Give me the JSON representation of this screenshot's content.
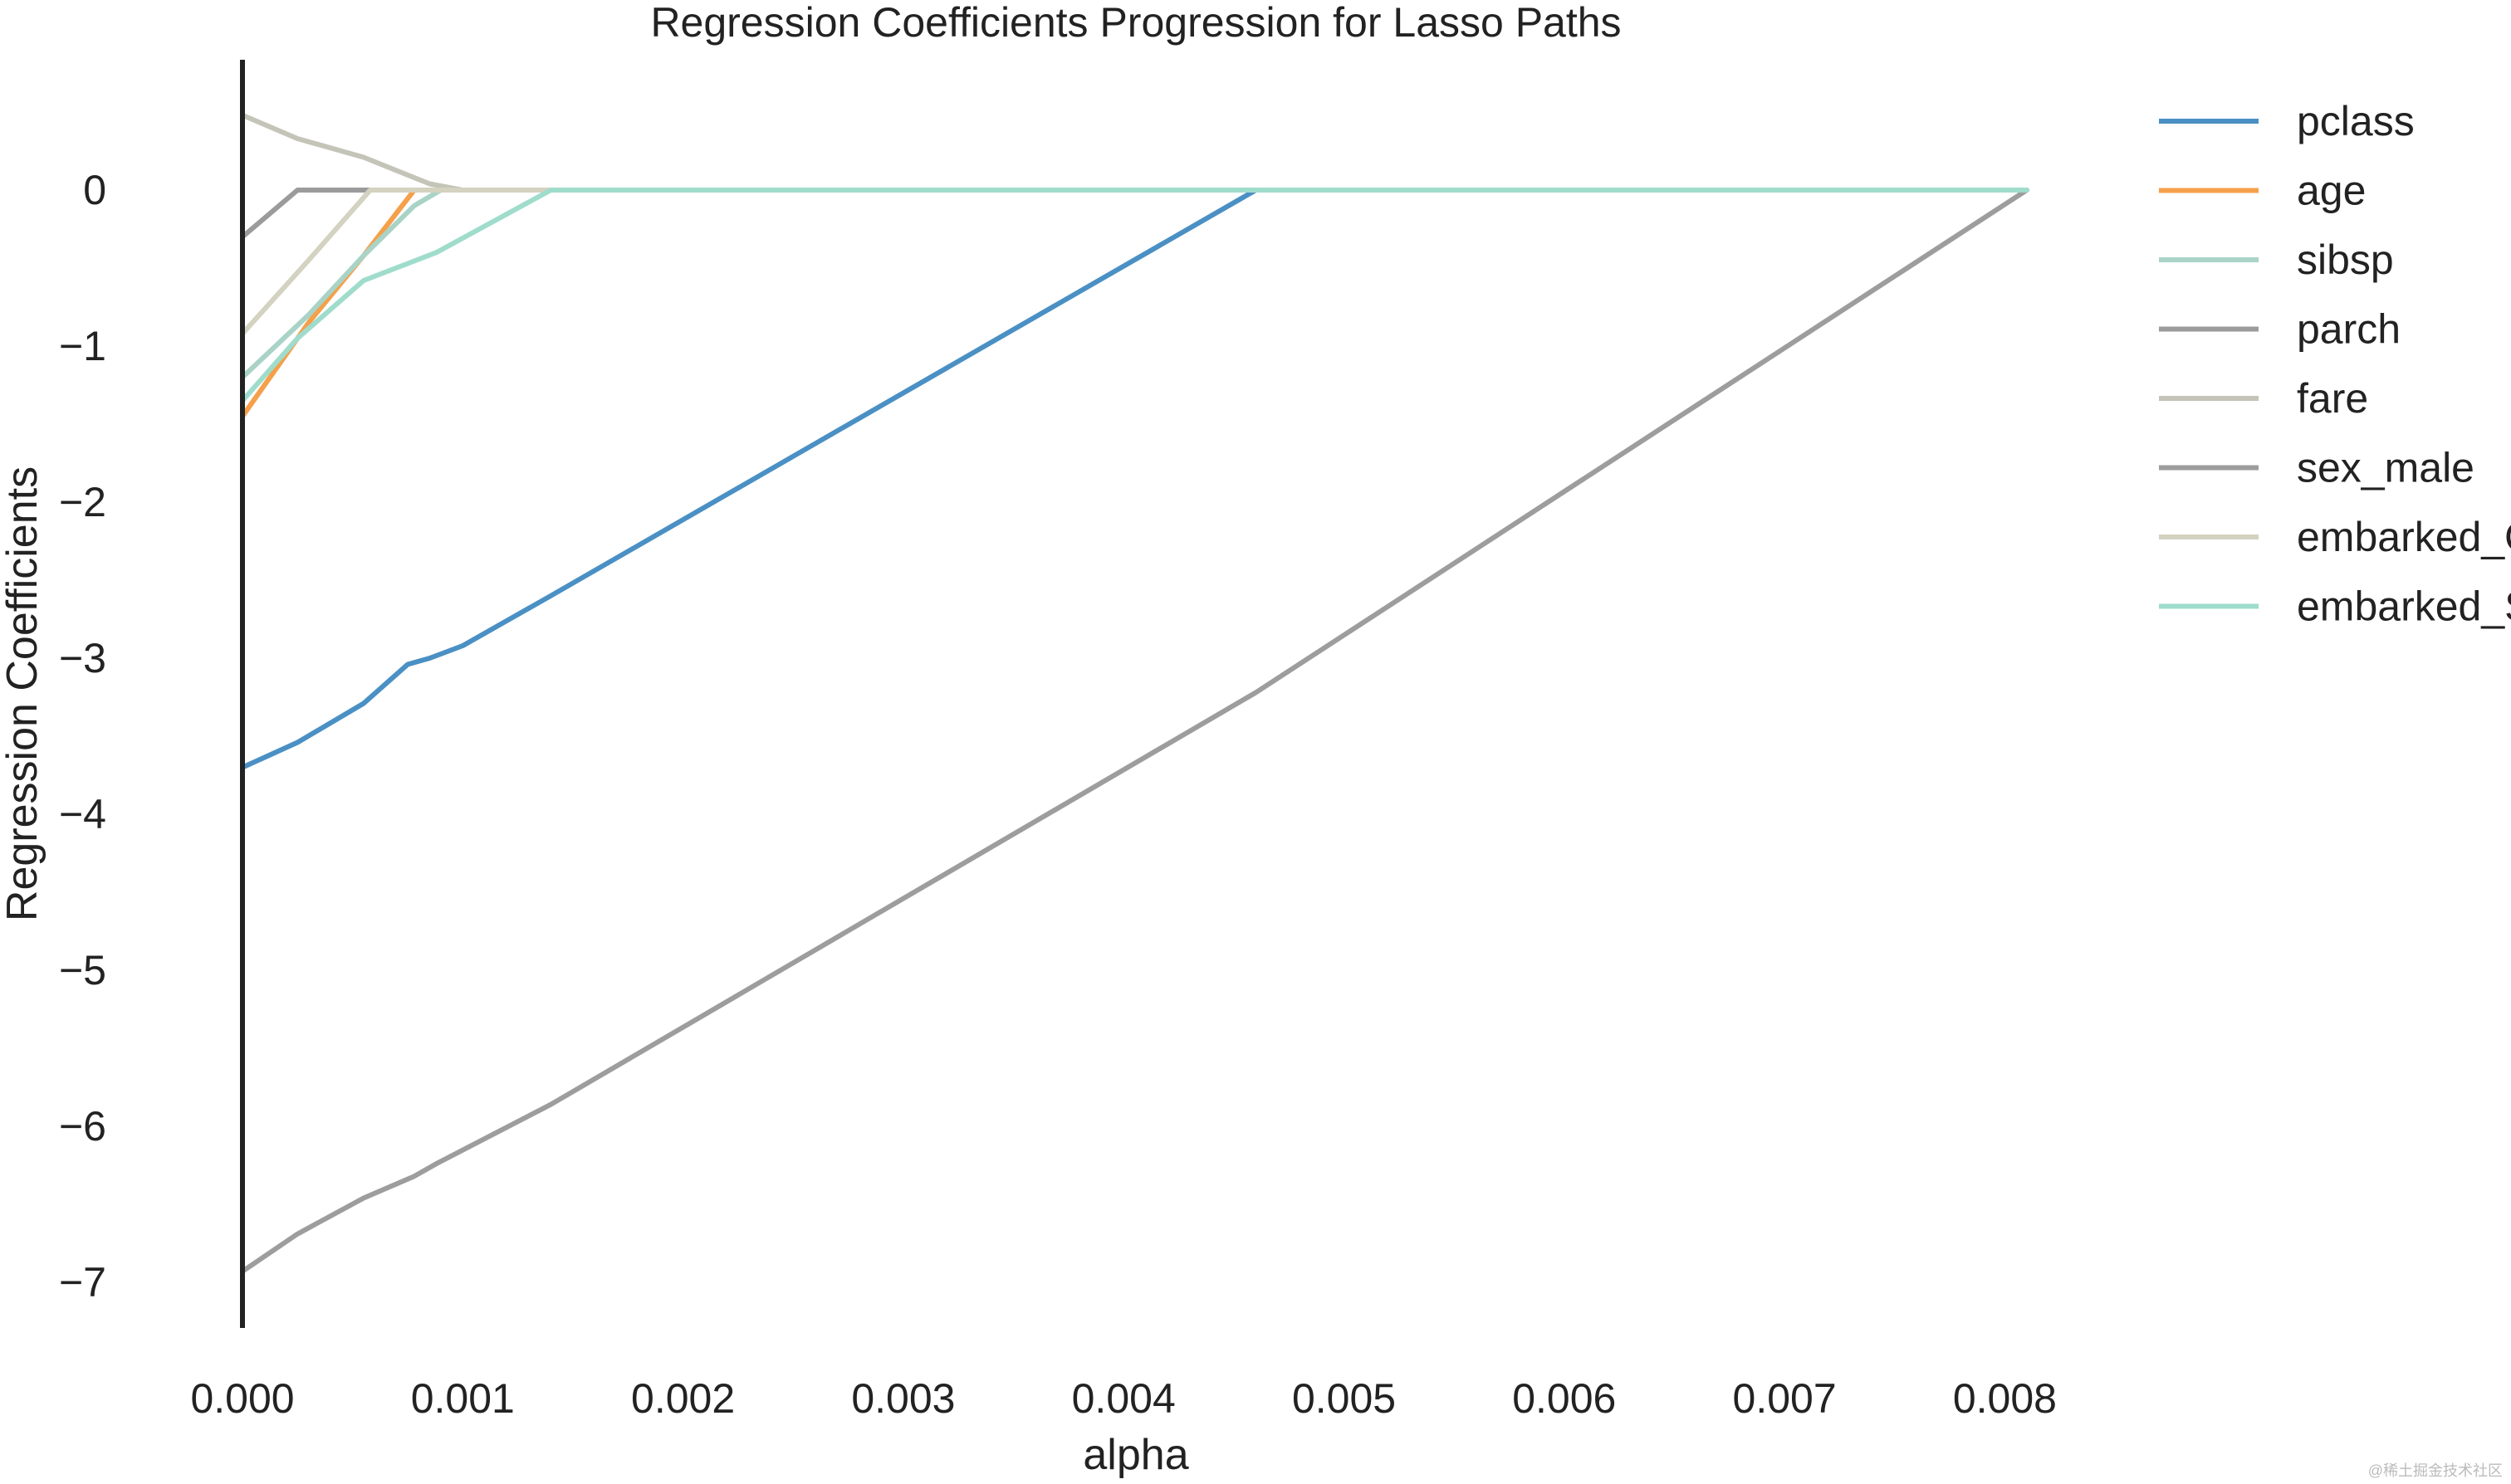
{
  "chart_data": {
    "type": "line",
    "title": "Regression Coefficients Progression for Lasso Paths",
    "xlabel": "alpha",
    "ylabel": "Regression Coefficients",
    "xlim": [
      0.0,
      0.0083
    ],
    "ylim": [
      -7.3,
      0.75
    ],
    "xticks": [
      0.0,
      0.001,
      0.002,
      0.003,
      0.004,
      0.005,
      0.006,
      0.007,
      0.008
    ],
    "xtick_labels": [
      "0.000",
      "0.001",
      "0.002",
      "0.003",
      "0.004",
      "0.005",
      "0.006",
      "0.007",
      "0.008"
    ],
    "yticks": [
      0,
      -1,
      -2,
      -3,
      -4,
      -5,
      -6,
      -7
    ],
    "ytick_labels": [
      "0",
      "−1",
      "−2",
      "−3",
      "−4",
      "−5",
      "−6",
      "−7"
    ],
    "grid": false,
    "legend_position": "outside-right",
    "series": [
      {
        "name": "pclass",
        "color": "#4a90c4",
        "points": [
          [
            0.0,
            -3.7
          ],
          [
            0.00025,
            -3.54
          ],
          [
            0.00055,
            -3.29
          ],
          [
            0.00075,
            -3.04
          ],
          [
            0.00085,
            -3.0
          ],
          [
            0.001,
            -2.92
          ],
          [
            0.0014,
            -2.6
          ],
          [
            0.0046,
            0.0
          ],
          [
            0.0081,
            0.0
          ]
        ]
      },
      {
        "name": "age",
        "color": "#f5a04a",
        "points": [
          [
            0.0,
            -1.45
          ],
          [
            0.0003,
            -0.85
          ],
          [
            0.00055,
            -0.42
          ],
          [
            0.00078,
            0.0
          ],
          [
            0.0081,
            0.0
          ]
        ]
      },
      {
        "name": "sibsp",
        "color": "#a9d3c7",
        "points": [
          [
            0.0,
            -1.2
          ],
          [
            0.0003,
            -0.8
          ],
          [
            0.00055,
            -0.42
          ],
          [
            0.00078,
            -0.1
          ],
          [
            0.0009,
            0.0
          ],
          [
            0.0081,
            0.0
          ]
        ]
      },
      {
        "name": "parch",
        "color": "#9b9b9b",
        "points": [
          [
            0.0,
            -0.3
          ],
          [
            0.00025,
            0.0
          ],
          [
            0.0081,
            0.0
          ]
        ]
      },
      {
        "name": "fare",
        "color": "#c4c4b8",
        "points": [
          [
            0.0,
            0.48
          ],
          [
            0.00025,
            0.33
          ],
          [
            0.00055,
            0.21
          ],
          [
            0.00085,
            0.04
          ],
          [
            0.001,
            0.0
          ],
          [
            0.0081,
            0.0
          ]
        ]
      },
      {
        "name": "sex_male",
        "color": "#9d9d9d",
        "points": [
          [
            0.0,
            -6.93
          ],
          [
            0.00025,
            -6.69
          ],
          [
            0.00055,
            -6.46
          ],
          [
            0.00078,
            -6.32
          ],
          [
            0.00088,
            -6.24
          ],
          [
            0.0014,
            -5.86
          ],
          [
            0.0046,
            -3.22
          ],
          [
            0.0081,
            0.0
          ]
        ]
      },
      {
        "name": "embarked_Q",
        "color": "#d4d2c0",
        "points": [
          [
            0.0,
            -0.92
          ],
          [
            0.0003,
            -0.45
          ],
          [
            0.00058,
            0.0
          ],
          [
            0.0081,
            0.0
          ]
        ]
      },
      {
        "name": "embarked_S",
        "color": "#9fdccb",
        "points": [
          [
            0.0,
            -1.35
          ],
          [
            0.00025,
            -0.95
          ],
          [
            0.00055,
            -0.58
          ],
          [
            0.00088,
            -0.4
          ],
          [
            0.0014,
            0.0
          ],
          [
            0.0081,
            0.0
          ]
        ]
      }
    ]
  },
  "watermark": "@稀土掘金技术社区"
}
